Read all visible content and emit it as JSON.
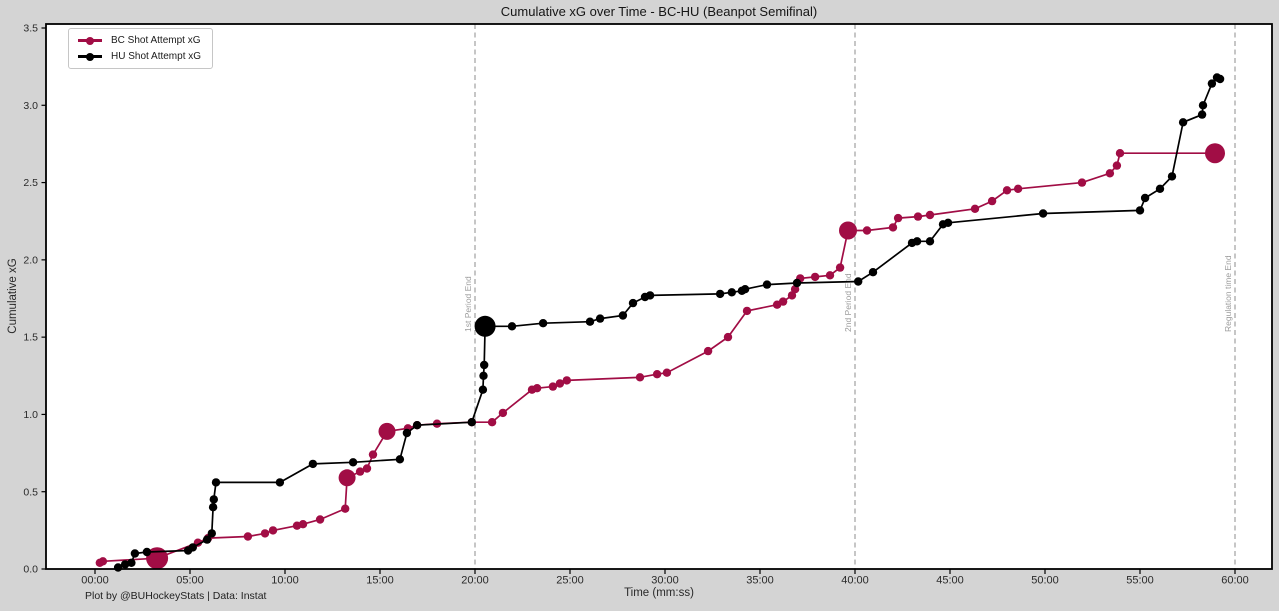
{
  "footer": {
    "credit": "Plot by @BUHockeyStats | Data: Instat"
  },
  "colors": {
    "background": "#d4d4d4",
    "plot_bg": "#ffffff",
    "spine": "#000000",
    "bc_accent": "#a10d45",
    "hu_accent": "#000000",
    "dashed_line": "#8e8e8e",
    "vline_label": "#9c9c9c",
    "tick_label": "#2a2a2a"
  },
  "chart_data": {
    "type": "line",
    "title": "Cumulative xG over Time - BC-HU (Beanpot Semifinal)",
    "xlabel": "Time (mm:ss)",
    "ylabel": "Cumulative xG",
    "grid": false,
    "legend_position": "upper-left",
    "xlim_seconds": [
      -155,
      3718
    ],
    "ylim": [
      0,
      3.525
    ],
    "x_ticks": [
      {
        "seconds": 0,
        "label": "00:00"
      },
      {
        "seconds": 300,
        "label": "05:00"
      },
      {
        "seconds": 600,
        "label": "10:00"
      },
      {
        "seconds": 900,
        "label": "15:00"
      },
      {
        "seconds": 1200,
        "label": "20:00"
      },
      {
        "seconds": 1500,
        "label": "25:00"
      },
      {
        "seconds": 1800,
        "label": "30:00"
      },
      {
        "seconds": 2100,
        "label": "35:00"
      },
      {
        "seconds": 2400,
        "label": "40:00"
      },
      {
        "seconds": 2700,
        "label": "45:00"
      },
      {
        "seconds": 3000,
        "label": "50:00"
      },
      {
        "seconds": 3300,
        "label": "55:00"
      },
      {
        "seconds": 3600,
        "label": "60:00"
      }
    ],
    "y_ticks": [
      {
        "value": 0.0,
        "label": "0.0"
      },
      {
        "value": 0.5,
        "label": "0.5"
      },
      {
        "value": 1.0,
        "label": "1.0"
      },
      {
        "value": 1.5,
        "label": "1.5"
      },
      {
        "value": 2.0,
        "label": "2.0"
      },
      {
        "value": 2.5,
        "label": "2.5"
      },
      {
        "value": 3.0,
        "label": "3.0"
      },
      {
        "value": 3.5,
        "label": "3.5"
      }
    ],
    "vlines": [
      {
        "seconds": 1200,
        "label": "1st Period End"
      },
      {
        "seconds": 2400,
        "label": "2nd Period End"
      },
      {
        "seconds": 3600,
        "label": "Regulation time End"
      }
    ],
    "series": [
      {
        "name": "BC Shot Attempt xG",
        "color": "#a10d45",
        "points": [
          [
            15,
            0.04
          ],
          [
            25,
            0.05
          ],
          [
            196,
            0.07,
            11
          ],
          [
            325,
            0.17
          ],
          [
            357,
            0.2
          ],
          [
            483,
            0.21
          ],
          [
            537,
            0.23
          ],
          [
            562,
            0.25
          ],
          [
            638,
            0.28
          ],
          [
            657,
            0.29
          ],
          [
            711,
            0.32
          ],
          [
            790,
            0.39
          ],
          [
            796,
            0.59,
            8.5
          ],
          [
            837,
            0.63
          ],
          [
            859,
            0.65
          ],
          [
            878,
            0.74
          ],
          [
            922,
            0.89,
            8.5
          ],
          [
            988,
            0.91
          ],
          [
            1017,
            0.93
          ],
          [
            1080,
            0.94
          ],
          [
            1190,
            0.95
          ],
          [
            1254,
            0.95
          ],
          [
            1288,
            1.01
          ],
          [
            1380,
            1.16
          ],
          [
            1396,
            1.17
          ],
          [
            1446,
            1.18
          ],
          [
            1468,
            1.2
          ],
          [
            1490,
            1.22
          ],
          [
            1721,
            1.24
          ],
          [
            1775,
            1.26
          ],
          [
            1806,
            1.27
          ],
          [
            1936,
            1.41
          ],
          [
            1999,
            1.5
          ],
          [
            2059,
            1.67
          ],
          [
            2154,
            1.71
          ],
          [
            2173,
            1.73
          ],
          [
            2201,
            1.77
          ],
          [
            2211,
            1.81
          ],
          [
            2227,
            1.88
          ],
          [
            2274,
            1.89
          ],
          [
            2321,
            1.9
          ],
          [
            2353,
            1.95
          ],
          [
            2378,
            2.19,
            9
          ],
          [
            2438,
            2.19
          ],
          [
            2520,
            2.21
          ],
          [
            2536,
            2.27
          ],
          [
            2599,
            2.28
          ],
          [
            2637,
            2.29
          ],
          [
            2779,
            2.33
          ],
          [
            2833,
            2.38
          ],
          [
            2880,
            2.45
          ],
          [
            2915,
            2.46
          ],
          [
            3117,
            2.5
          ],
          [
            3205,
            2.56
          ],
          [
            3227,
            2.61
          ],
          [
            3237,
            2.69
          ],
          [
            3537,
            2.69,
            10
          ]
        ]
      },
      {
        "name": "HU Shot Attempt xG",
        "color": "#000000",
        "points": [
          [
            73,
            0.01
          ],
          [
            95,
            0.03
          ],
          [
            115,
            0.04
          ],
          [
            126,
            0.1
          ],
          [
            164,
            0.11
          ],
          [
            294,
            0.12
          ],
          [
            309,
            0.14
          ],
          [
            354,
            0.19
          ],
          [
            369,
            0.23
          ],
          [
            373,
            0.4
          ],
          [
            375,
            0.45
          ],
          [
            382,
            0.56
          ],
          [
            584,
            0.56
          ],
          [
            688,
            0.68
          ],
          [
            815,
            0.69
          ],
          [
            963,
            0.71
          ],
          [
            985,
            0.88
          ],
          [
            1017,
            0.93
          ],
          [
            1190,
            0.95
          ],
          [
            1225,
            1.16
          ],
          [
            1227,
            1.25
          ],
          [
            1229,
            1.32
          ],
          [
            1232,
            1.57,
            10.5
          ],
          [
            1317,
            1.57
          ],
          [
            1415,
            1.59
          ],
          [
            1563,
            1.6
          ],
          [
            1595,
            1.62
          ],
          [
            1667,
            1.64
          ],
          [
            1699,
            1.72
          ],
          [
            1737,
            1.76
          ],
          [
            1753,
            1.77
          ],
          [
            1974,
            1.78
          ],
          [
            2011,
            1.79
          ],
          [
            2043,
            1.8
          ],
          [
            2053,
            1.81
          ],
          [
            2122,
            1.84
          ],
          [
            2217,
            1.85
          ],
          [
            2410,
            1.86
          ],
          [
            2457,
            1.92
          ],
          [
            2580,
            2.11
          ],
          [
            2596,
            2.12
          ],
          [
            2637,
            2.12
          ],
          [
            2678,
            2.23
          ],
          [
            2694,
            2.24
          ],
          [
            2994,
            2.3
          ],
          [
            3300,
            2.32
          ],
          [
            3316,
            2.4
          ],
          [
            3363,
            2.46
          ],
          [
            3401,
            2.54
          ],
          [
            3436,
            2.89
          ],
          [
            3496,
            2.94
          ],
          [
            3499,
            3.0
          ],
          [
            3527,
            3.14
          ],
          [
            3543,
            3.18
          ],
          [
            3553,
            3.17
          ]
        ]
      }
    ]
  }
}
